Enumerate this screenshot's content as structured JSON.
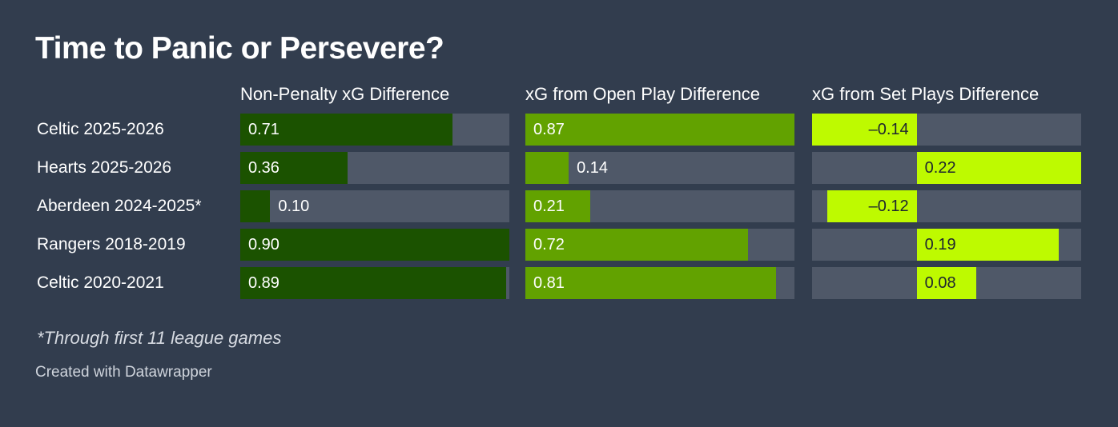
{
  "title": "Time to Panic or Persevere?",
  "note": "*Through first 11 league games",
  "credit": "Created with Datawrapper",
  "colors": {
    "background": "#323d4e",
    "track": "#4f5868",
    "series_1": "#1b5200",
    "series_2": "#62a200",
    "series_3": "#befa00"
  },
  "chart_data": {
    "type": "bar",
    "categories": [
      "Celtic 2025-2026",
      "Hearts 2025-2026",
      "Aberdeen 2024-2025*",
      "Rangers 2018-2019",
      "Celtic 2020-2021"
    ],
    "series": [
      {
        "name": "Non-Penalty xG Difference",
        "values": [
          0.71,
          0.36,
          0.1,
          0.9,
          0.89
        ],
        "labels": [
          "0.71",
          "0.36",
          "0.10",
          "0.90",
          "0.89"
        ],
        "domain": [
          0,
          0.9
        ],
        "color": "#1b5200"
      },
      {
        "name": "xG from Open Play Difference",
        "values": [
          0.87,
          0.14,
          0.21,
          0.72,
          0.81
        ],
        "labels": [
          "0.87",
          "0.14",
          "0.21",
          "0.72",
          "0.81"
        ],
        "domain": [
          0,
          0.87
        ],
        "color": "#62a200"
      },
      {
        "name": "xG from Set Plays Difference",
        "values": [
          -0.14,
          0.22,
          -0.12,
          0.19,
          0.08
        ],
        "labels": [
          "–0.14",
          "0.22",
          "–0.12",
          "0.19",
          "0.08"
        ],
        "domain": [
          -0.14,
          0.22
        ],
        "color": "#befa00"
      }
    ]
  }
}
